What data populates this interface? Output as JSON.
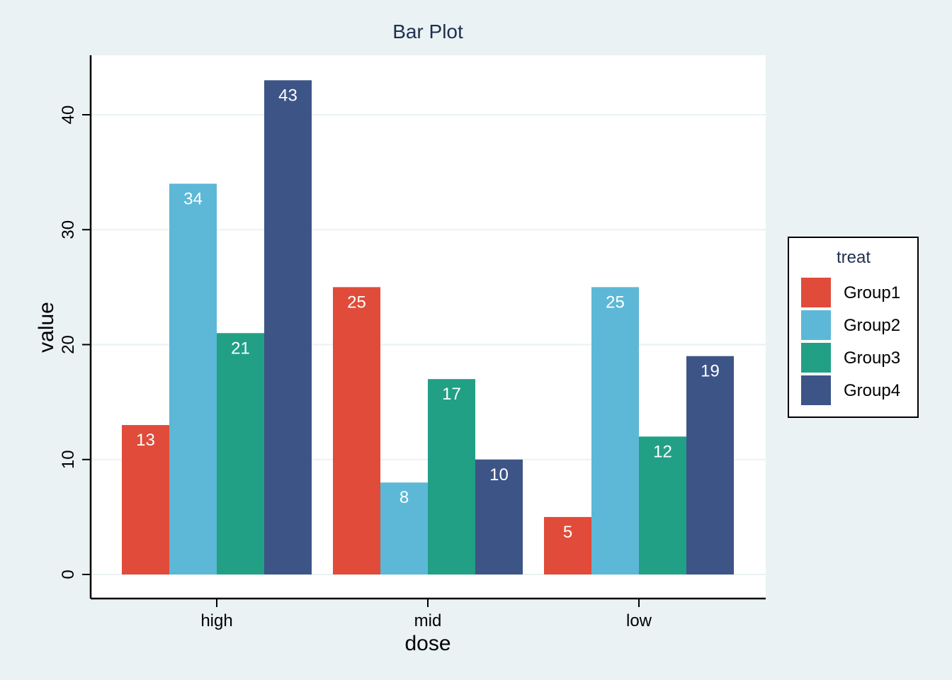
{
  "chart_data": {
    "type": "bar",
    "title": "Bar Plot",
    "xlabel": "dose",
    "ylabel": "value",
    "categories": [
      "high",
      "mid",
      "low"
    ],
    "series": [
      {
        "name": "Group1",
        "values": [
          13,
          25,
          5
        ],
        "color": "#e04b3a"
      },
      {
        "name": "Group2",
        "values": [
          34,
          8,
          25
        ],
        "color": "#5cb8d6"
      },
      {
        "name": "Group3",
        "values": [
          21,
          17,
          12
        ],
        "color": "#21a086"
      },
      {
        "name": "Group4",
        "values": [
          43,
          10,
          19
        ],
        "color": "#3d5487"
      }
    ],
    "ylim": [
      0,
      45
    ],
    "yticks": [
      0,
      10,
      20,
      30,
      40
    ],
    "grid": true,
    "legend": {
      "title": "treat",
      "placement": "right"
    },
    "colors": {
      "background": "#eaf2f3",
      "plot_background": "#ffffff",
      "gridline": "#eaf2f3",
      "title": "#1e3050"
    }
  }
}
